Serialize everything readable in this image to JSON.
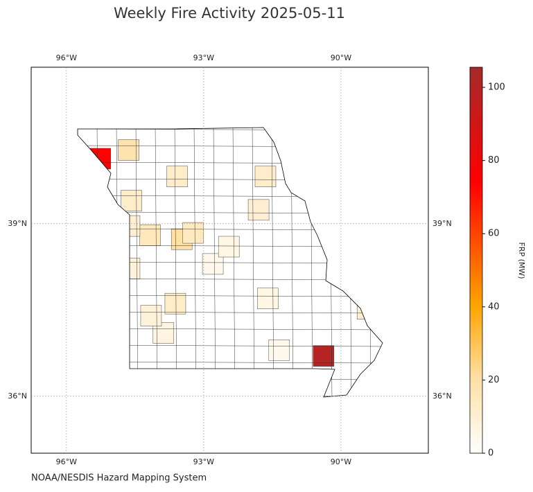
{
  "chart_data": {
    "type": "choropleth",
    "title": "Weekly Fire Activity 2025-05-11",
    "source": "NOAA/NESDIS Hazard Mapping System",
    "colorbar_label": "FRP (MW)",
    "xlim": [
      -96.77,
      -88.09
    ],
    "ylim": [
      35.01,
      41.72
    ],
    "xticks": [
      {
        "value": -96,
        "label": "96°W"
      },
      {
        "value": -93,
        "label": "93°W"
      },
      {
        "value": -90,
        "label": "90°W"
      }
    ],
    "yticks": [
      {
        "value": 36,
        "label": "36°N"
      },
      {
        "value": 39,
        "label": "39°N"
      }
    ],
    "clim": [
      0,
      105.5
    ],
    "cticks": [
      0,
      20,
      40,
      60,
      80,
      100
    ],
    "grid": true,
    "regions": {
      "lon": [
        -95.26,
        -90.38,
        -94.64,
        -93.48,
        -94.17,
        -93.58,
        -91.65,
        -94.62,
        -93.23,
        -91.8,
        -89.42,
        -93.62,
        -94.58,
        -94.62,
        -91.6,
        -93.88,
        -92.8,
        -92.45,
        -94.15,
        -91.35
      ],
      "lat": [
        40.13,
        36.7,
        40.28,
        38.73,
        38.8,
        39.82,
        39.82,
        38.96,
        38.84,
        39.24,
        37.52,
        37.61,
        39.4,
        38.22,
        37.7,
        37.1,
        38.3,
        38.6,
        37.4,
        36.8
      ],
      "values": [
        75,
        100,
        18,
        20,
        15,
        12,
        12,
        10,
        14,
        10,
        10,
        12,
        12,
        8,
        6,
        7,
        4,
        6,
        8,
        4
      ]
    }
  }
}
